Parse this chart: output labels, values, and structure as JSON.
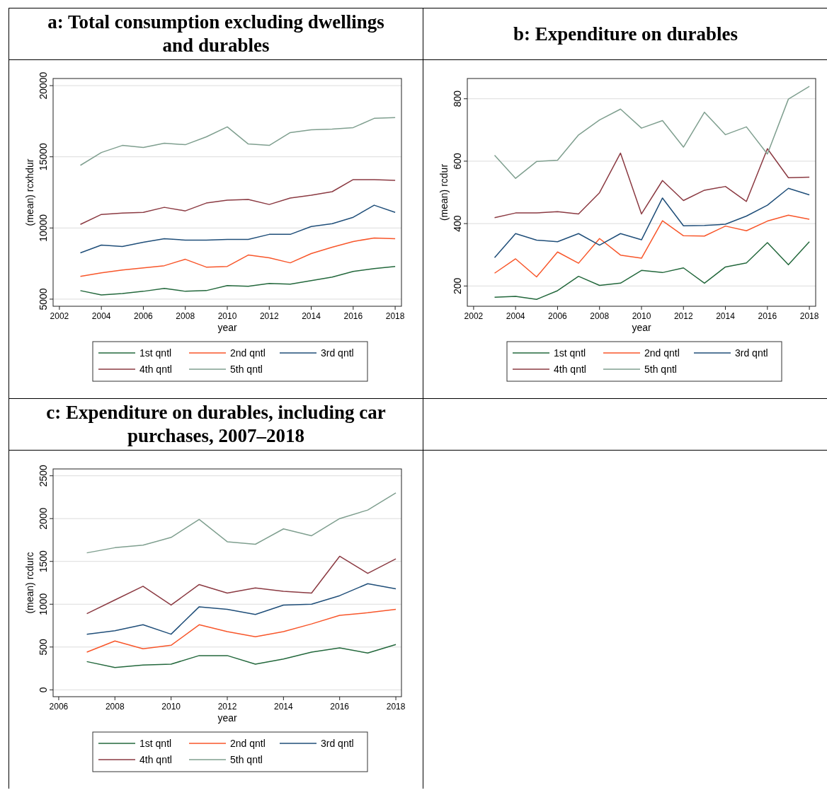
{
  "chart_data": [
    {
      "type": "line",
      "title": "a: Total consumption excluding dwellings and durables",
      "xlabel": "year",
      "ylabel": "(mean) rcxhdur",
      "xlim": [
        2001.7,
        2018.3
      ],
      "xticks": [
        2002,
        2004,
        2006,
        2008,
        2010,
        2012,
        2014,
        2016,
        2018
      ],
      "ylim": [
        4500,
        20500
      ],
      "yticks": [
        5000,
        10000,
        15000,
        20000
      ],
      "grid": "y",
      "legend": "bottom",
      "x": [
        2003,
        2004,
        2005,
        2006,
        2007,
        2008,
        2009,
        2010,
        2011,
        2012,
        2013,
        2014,
        2015,
        2016,
        2017,
        2018
      ],
      "series": [
        {
          "name": "1st qntl",
          "color": "#23683c",
          "values": [
            5600,
            5300,
            5400,
            5550,
            5750,
            5550,
            5600,
            5950,
            5900,
            6100,
            6050,
            6300,
            6550,
            6950,
            7150,
            7300
          ]
        },
        {
          "name": "2nd qntl",
          "color": "#f8562a",
          "values": [
            6600,
            6850,
            7050,
            7200,
            7350,
            7800,
            7250,
            7300,
            8100,
            7900,
            7550,
            8200,
            8650,
            9050,
            9300,
            9250
          ]
        },
        {
          "name": "3rd qntl",
          "color": "#1f4e79",
          "values": [
            8250,
            8800,
            8700,
            9000,
            9250,
            9150,
            9150,
            9200,
            9200,
            9550,
            9550,
            10100,
            10300,
            10750,
            11600,
            11100
          ]
        },
        {
          "name": "4th qntl",
          "color": "#8b3a42",
          "values": [
            10250,
            10950,
            11050,
            11100,
            11450,
            11200,
            11750,
            11950,
            12000,
            11650,
            12100,
            12300,
            12550,
            13400,
            13400,
            13350
          ]
        },
        {
          "name": "5th qntl",
          "color": "#7f9f8f",
          "values": [
            14400,
            15300,
            15800,
            15650,
            15950,
            15850,
            16400,
            17100,
            15900,
            15800,
            16700,
            16900,
            16950,
            17050,
            17700,
            17750
          ]
        }
      ]
    },
    {
      "type": "line",
      "title": "b: Expenditure on durables",
      "xlabel": "year",
      "ylabel": "(mean) rcdur",
      "xlim": [
        2001.7,
        2018.3
      ],
      "xticks": [
        2002,
        2004,
        2006,
        2008,
        2010,
        2012,
        2014,
        2016,
        2018
      ],
      "ylim": [
        135,
        865
      ],
      "yticks": [
        200,
        400,
        600,
        800
      ],
      "grid": "y",
      "legend": "bottom",
      "x": [
        2003,
        2004,
        2005,
        2006,
        2007,
        2008,
        2009,
        2010,
        2011,
        2012,
        2013,
        2014,
        2015,
        2016,
        2017,
        2018
      ],
      "series": [
        {
          "name": "1st qntl",
          "color": "#23683c",
          "values": [
            164,
            167,
            157,
            185,
            231,
            202,
            209,
            250,
            243,
            258,
            209,
            261,
            274,
            339,
            268,
            342
          ]
        },
        {
          "name": "2nd qntl",
          "color": "#f8562a",
          "values": [
            241,
            287,
            229,
            309,
            273,
            352,
            299,
            289,
            409,
            361,
            360,
            392,
            377,
            408,
            427,
            414
          ]
        },
        {
          "name": "3rd qntl",
          "color": "#1f4e79",
          "values": [
            291,
            368,
            347,
            342,
            368,
            331,
            368,
            348,
            482,
            393,
            394,
            398,
            424,
            459,
            513,
            492
          ]
        },
        {
          "name": "4th qntl",
          "color": "#8b3a42",
          "values": [
            419,
            434,
            434,
            438,
            431,
            499,
            626,
            431,
            538,
            474,
            507,
            519,
            471,
            640,
            547,
            549
          ]
        },
        {
          "name": "5th qntl",
          "color": "#7f9f8f",
          "values": [
            619,
            545,
            599,
            603,
            684,
            732,
            767,
            706,
            730,
            645,
            757,
            685,
            710,
            623,
            799,
            840
          ]
        }
      ]
    },
    {
      "type": "line",
      "title": "c: Expenditure on durables, including car purchases, 2007–2018",
      "xlabel": "year",
      "ylabel": "(mean) rcdurc",
      "xlim": [
        2005.8,
        2018.2
      ],
      "xticks": [
        2006,
        2008,
        2010,
        2012,
        2014,
        2016,
        2018
      ],
      "ylim": [
        -80,
        2580
      ],
      "yticks": [
        0,
        500,
        1000,
        1500,
        2000,
        2500
      ],
      "grid": "y",
      "legend": "bottom",
      "x": [
        2007,
        2008,
        2009,
        2010,
        2011,
        2012,
        2013,
        2014,
        2015,
        2016,
        2017,
        2018
      ],
      "series": [
        {
          "name": "1st qntl",
          "color": "#23683c",
          "values": [
            330,
            260,
            290,
            300,
            400,
            400,
            300,
            360,
            440,
            490,
            430,
            530
          ]
        },
        {
          "name": "2nd qntl",
          "color": "#f8562a",
          "values": [
            440,
            570,
            480,
            520,
            760,
            680,
            620,
            680,
            770,
            870,
            900,
            940
          ]
        },
        {
          "name": "3rd qntl",
          "color": "#1f4e79",
          "values": [
            650,
            690,
            760,
            650,
            970,
            940,
            880,
            990,
            1000,
            1100,
            1240,
            1180
          ]
        },
        {
          "name": "4th qntl",
          "color": "#8b3a42",
          "values": [
            890,
            1050,
            1210,
            990,
            1230,
            1130,
            1190,
            1150,
            1130,
            1560,
            1360,
            1530
          ]
        },
        {
          "name": "5th qntl",
          "color": "#7f9f8f",
          "values": [
            1600,
            1660,
            1690,
            1780,
            1990,
            1730,
            1700,
            1880,
            1800,
            2000,
            2100,
            2300
          ]
        }
      ]
    }
  ]
}
